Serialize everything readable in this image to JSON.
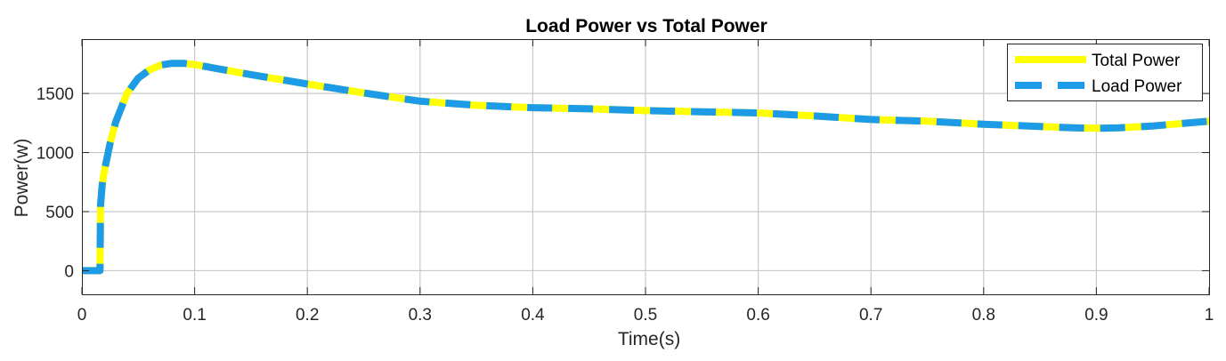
{
  "chart_data": {
    "type": "line",
    "title": "Load Power vs Total Power",
    "xlabel": "Time(s)",
    "ylabel": "Power(w)",
    "xlim": [
      0,
      1
    ],
    "ylim": [
      -200,
      1960
    ],
    "xticks": [
      0,
      0.1,
      0.2,
      0.3,
      0.4,
      0.5,
      0.6,
      0.7,
      0.8,
      0.9,
      1
    ],
    "xtick_labels": [
      "0",
      "0.1",
      "0.2",
      "0.3",
      "0.4",
      "0.5",
      "0.6",
      "0.7",
      "0.8",
      "0.9",
      "1"
    ],
    "yticks": [
      0,
      500,
      1000,
      1500
    ],
    "ytick_labels": [
      "0",
      "500",
      "1000",
      "1500"
    ],
    "grid": true,
    "legend_position": "top-right",
    "series": [
      {
        "name": "Total Power",
        "color": "#ffff00",
        "style": "solid",
        "x": [
          0,
          0.016,
          0.0165,
          0.018,
          0.02,
          0.025,
          0.03,
          0.04,
          0.05,
          0.06,
          0.07,
          0.08,
          0.09,
          0.1,
          0.12,
          0.15,
          0.2,
          0.25,
          0.3,
          0.35,
          0.4,
          0.45,
          0.5,
          0.55,
          0.6,
          0.65,
          0.7,
          0.75,
          0.8,
          0.85,
          0.88,
          0.9,
          0.92,
          0.95,
          1.0
        ],
        "y": [
          0,
          0,
          550,
          730,
          850,
          1080,
          1260,
          1500,
          1630,
          1700,
          1740,
          1755,
          1755,
          1745,
          1710,
          1660,
          1580,
          1505,
          1435,
          1400,
          1380,
          1370,
          1355,
          1345,
          1335,
          1310,
          1280,
          1265,
          1240,
          1220,
          1210,
          1205,
          1210,
          1225,
          1265
        ]
      },
      {
        "name": "Load Power",
        "color": "#1e9be6",
        "style": "dashed",
        "x": [
          0,
          0.016,
          0.0165,
          0.018,
          0.02,
          0.025,
          0.03,
          0.04,
          0.05,
          0.06,
          0.07,
          0.08,
          0.09,
          0.1,
          0.12,
          0.15,
          0.2,
          0.25,
          0.3,
          0.35,
          0.4,
          0.45,
          0.5,
          0.55,
          0.6,
          0.65,
          0.7,
          0.75,
          0.8,
          0.85,
          0.88,
          0.9,
          0.92,
          0.95,
          1.0
        ],
        "y": [
          0,
          0,
          550,
          730,
          850,
          1080,
          1260,
          1500,
          1630,
          1700,
          1740,
          1755,
          1755,
          1745,
          1710,
          1660,
          1580,
          1505,
          1435,
          1400,
          1380,
          1370,
          1355,
          1345,
          1335,
          1310,
          1280,
          1265,
          1240,
          1220,
          1210,
          1205,
          1210,
          1225,
          1265
        ]
      }
    ]
  }
}
